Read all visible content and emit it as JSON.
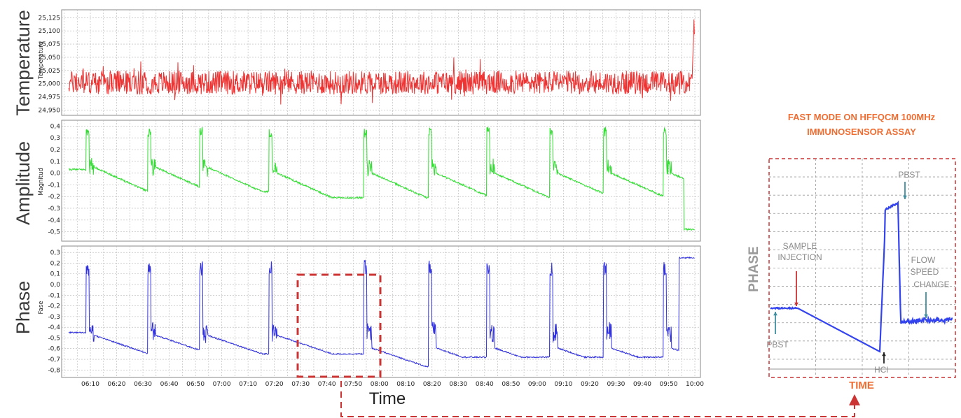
{
  "chart_data": [
    {
      "type": "line",
      "panel": "Temperature",
      "ylabel": "Temperature",
      "ylabel_inner": "Temperatura",
      "yticks": [
        "25,125",
        "25,100",
        "25,075",
        "25,050",
        "25,025",
        "25,000",
        "24,975",
        "24,950"
      ],
      "ylim": [
        24.94,
        25.14
      ],
      "color": "#ee3333",
      "series": [
        {
          "x": [
            6.0,
            10.0
          ],
          "values": [
            25.0,
            25.0
          ]
        }
      ],
      "notes": "noise around 25.000 with spike to 25.13 near 10:00"
    },
    {
      "type": "line",
      "panel": "Amplitude",
      "ylabel": "Amplitude",
      "ylabel_inner": "Magnitud",
      "yticks": [
        "0,4",
        "0,3",
        "0,2",
        "0,1",
        "0,0",
        "-0,1",
        "-0,2",
        "-0,3",
        "-0,4",
        "-0,5"
      ],
      "ylim": [
        -0.58,
        0.45
      ],
      "color": "#33dd33"
    },
    {
      "type": "line",
      "panel": "Phase",
      "ylabel": "Phase",
      "ylabel_inner": "Fase",
      "yticks": [
        "0,3",
        "0,2",
        "0,1",
        "0,0",
        "-0,1",
        "-0,2",
        "-0,3",
        "-0,4",
        "-0,5",
        "-0,6",
        "-0,7",
        "-0,8"
      ],
      "ylim": [
        -0.87,
        0.36
      ],
      "color": "#3333dd",
      "xlabel": "Time",
      "xticks": [
        "06:10",
        "06:20",
        "06:30",
        "06:40",
        "06:50",
        "07:00",
        "07:10",
        "07:20",
        "07:30",
        "07:40",
        "07:50",
        "08:00",
        "08:10",
        "08:20",
        "08:30",
        "08:40",
        "08:50",
        "09:00",
        "09:10",
        "09:20",
        "09:30",
        "09:40",
        "09:50",
        "10:00"
      ]
    },
    {
      "type": "line",
      "panel": "inset",
      "title_lines": [
        "FAST MODE ON HFFQCM 100MHz",
        "IMMUNOSENSOR ASSAY"
      ],
      "xlabel": "TIME",
      "ylabel": "PHASE",
      "annotations": [
        "SAMPLE",
        "INJECTION",
        "PBST",
        "PBST",
        "FLOW",
        "SPEED",
        "CHANGE",
        "HCl"
      ],
      "color": "#3344ee"
    }
  ],
  "colors": {
    "frame_dash": "#cc3333",
    "inset_title": "#ee6d32",
    "grid": "#aaaaaa"
  }
}
